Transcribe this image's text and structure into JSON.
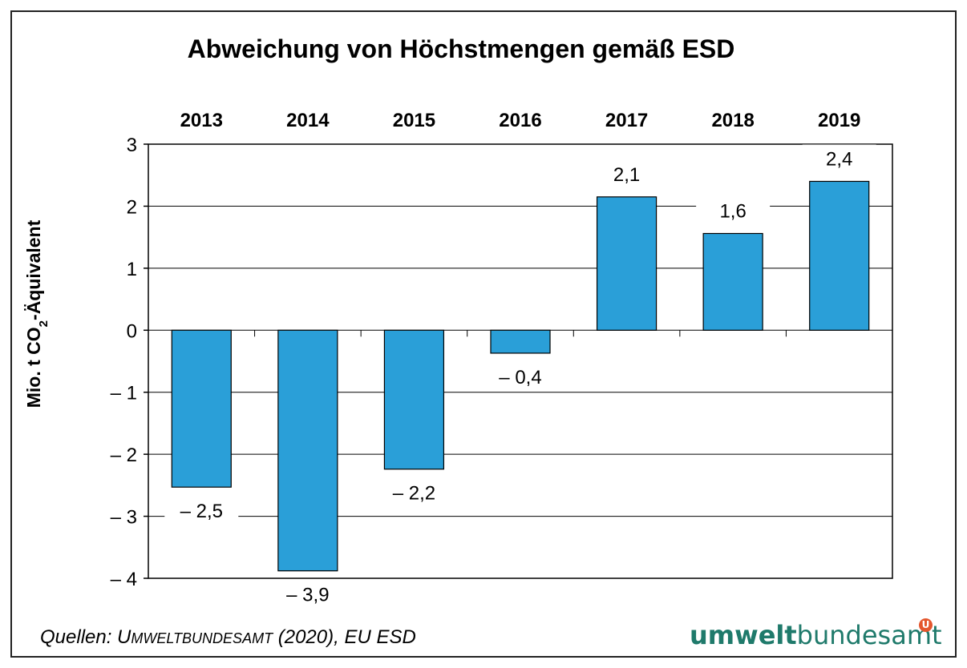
{
  "chart_data": {
    "type": "bar",
    "title": "Abweichung von Höchstmengen gemäß ESD",
    "ylabel": "Mio. t CO₂-Äquivalent",
    "categories": [
      "2013",
      "2014",
      "2015",
      "2016",
      "2017",
      "2018",
      "2019"
    ],
    "values": [
      -2.53,
      -3.88,
      -2.24,
      -0.37,
      2.15,
      1.56,
      2.4
    ],
    "value_labels": [
      "– 2,5",
      "– 3,9",
      "– 2,2",
      "– 0,4",
      "2,1",
      "1,6",
      "2,4"
    ],
    "yticks": [
      3,
      2,
      1,
      0,
      -1,
      -2,
      -3,
      -4
    ],
    "ytick_labels": [
      "3",
      "2",
      "1",
      "0",
      "– 1",
      "– 2",
      "– 3",
      "– 4"
    ],
    "ylim": [
      -4,
      3
    ],
    "grid": true,
    "category_axis_position": "top",
    "bar_color": "#2a9fd8",
    "source": {
      "prefix": "Quellen: U",
      "smallcaps": "mweltbundesamt",
      "suffix": " (2020), EU ESD"
    },
    "logo": {
      "part1": "umwelt",
      "part2": "bundesamt",
      "mark": "U"
    }
  }
}
